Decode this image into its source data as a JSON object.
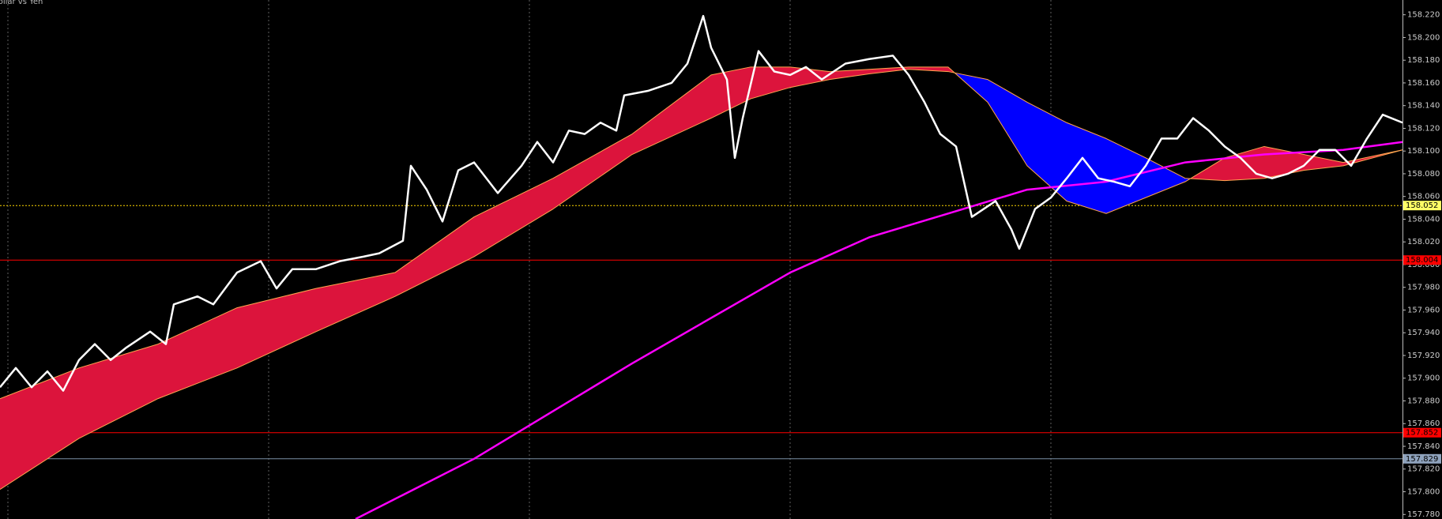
{
  "chart_data": {
    "type": "line",
    "title": "Dollar vs Yen",
    "background": "#000000",
    "grid": true,
    "grid_color": "#606060",
    "ylim": [
      157.776,
      158.233
    ],
    "xlim": [
      0,
      1775
    ],
    "xticks": [
      10,
      340,
      670,
      1000,
      1330
    ],
    "yticks": [
      {
        "value": 158.22,
        "label": "158.220"
      },
      {
        "value": 158.2,
        "label": "158.200"
      },
      {
        "value": 158.18,
        "label": "158.180"
      },
      {
        "value": 158.16,
        "label": "158.160"
      },
      {
        "value": 158.14,
        "label": "158.140"
      },
      {
        "value": 158.12,
        "label": "158.120"
      },
      {
        "value": 158.1,
        "label": "158.100"
      },
      {
        "value": 158.08,
        "label": "158.080"
      },
      {
        "value": 158.06,
        "label": "158.060"
      },
      {
        "value": 158.04,
        "label": "158.040"
      },
      {
        "value": 158.02,
        "label": "158.020"
      },
      {
        "value": 158,
        "label": "158.000"
      },
      {
        "value": 157.98,
        "label": "157.980"
      },
      {
        "value": 157.96,
        "label": "157.960"
      },
      {
        "value": 157.94,
        "label": "157.940"
      },
      {
        "value": 157.92,
        "label": "157.920"
      },
      {
        "value": 157.9,
        "label": "157.900"
      },
      {
        "value": 157.88,
        "label": "157.880"
      },
      {
        "value": 157.86,
        "label": "157.860"
      },
      {
        "value": 157.84,
        "label": "157.840"
      },
      {
        "value": 157.82,
        "label": "157.820"
      },
      {
        "value": 157.8,
        "label": "157.800"
      },
      {
        "value": 157.78,
        "label": "157.780"
      }
    ],
    "levels": [
      {
        "value": 158.052,
        "color": "#ffd700",
        "box_color": "#ffff66",
        "dotted": true
      },
      {
        "value": 158.004,
        "color": "#ff0000",
        "box_color": "#ff0000",
        "dotted": false
      },
      {
        "value": 157.852,
        "color": "#ff0000",
        "box_color": "#ff0000",
        "dotted": false
      },
      {
        "value": 157.829,
        "color": "#7a8fa6",
        "box_color": "#8fa3bd",
        "dotted": false
      }
    ],
    "cloud_colors": {
      "up": "#dc143c",
      "down": "#0000ff"
    },
    "ma_x": [
      0,
      100,
      200,
      300,
      400,
      500,
      600,
      700,
      800,
      900,
      950,
      1000,
      1050,
      1100,
      1150,
      1200,
      1250,
      1300,
      1350,
      1400,
      1450,
      1500,
      1550,
      1600,
      1650,
      1700,
      1775
    ],
    "fast_ma": {
      "color": "#ffa54f",
      "values": [
        157.882,
        157.909,
        157.93,
        157.962,
        157.979,
        157.993,
        158.042,
        158.076,
        158.115,
        158.167,
        158.174,
        158.174,
        158.17,
        158.172,
        158.174,
        158.174,
        158.143,
        158.087,
        158.056,
        158.045,
        158.059,
        158.073,
        158.094,
        158.104,
        158.097,
        158.09,
        158.101
      ]
    },
    "slow_ma": {
      "color": "#ffa54f",
      "values": [
        157.802,
        157.847,
        157.882,
        157.909,
        157.941,
        157.972,
        158.007,
        158.049,
        158.097,
        158.129,
        158.146,
        158.156,
        158.163,
        158.168,
        158.172,
        158.17,
        158.163,
        158.143,
        158.125,
        158.111,
        158.094,
        158.076,
        158.074,
        158.076,
        158.083,
        158.087,
        158.101
      ]
    },
    "long_ma": {
      "color": "#ff00ff",
      "x": [
        450,
        600,
        800,
        1000,
        1100,
        1200,
        1300,
        1400,
        1500,
        1600,
        1700,
        1775
      ],
      "values": [
        157.776,
        157.829,
        157.913,
        157.993,
        158.024,
        158.045,
        158.066,
        158.073,
        158.09,
        158.097,
        158.101,
        158.108
      ]
    },
    "price": {
      "color": "#ffffff",
      "x": [
        0,
        20,
        40,
        60,
        80,
        100,
        120,
        140,
        160,
        190,
        210,
        220,
        250,
        270,
        300,
        330,
        350,
        370,
        400,
        430,
        460,
        480,
        510,
        520,
        540,
        560,
        580,
        600,
        630,
        660,
        680,
        700,
        720,
        740,
        760,
        780,
        790,
        820,
        850,
        870,
        890,
        900,
        920,
        930,
        940,
        960,
        980,
        1000,
        1020,
        1040,
        1070,
        1100,
        1130,
        1150,
        1170,
        1190,
        1210,
        1230,
        1260,
        1280,
        1290,
        1310,
        1330,
        1350,
        1370,
        1390,
        1410,
        1430,
        1450,
        1470,
        1490,
        1510,
        1530,
        1550,
        1570,
        1590,
        1610,
        1630,
        1650,
        1670,
        1690,
        1710,
        1730,
        1750,
        1775
      ],
      "values": [
        157.892,
        157.909,
        157.892,
        157.906,
        157.889,
        157.916,
        157.93,
        157.916,
        157.927,
        157.941,
        157.93,
        157.965,
        157.972,
        157.965,
        157.993,
        158.003,
        157.979,
        157.996,
        157.996,
        158.003,
        158.007,
        158.01,
        158.021,
        158.087,
        158.066,
        158.038,
        158.083,
        158.09,
        158.063,
        158.087,
        158.108,
        158.09,
        158.118,
        158.115,
        158.125,
        158.118,
        158.149,
        158.153,
        158.16,
        158.177,
        158.219,
        158.191,
        158.163,
        158.094,
        158.129,
        158.188,
        158.17,
        158.167,
        158.174,
        158.163,
        158.177,
        158.181,
        158.184,
        158.167,
        158.143,
        158.115,
        158.104,
        158.042,
        158.056,
        158.031,
        158.014,
        158.049,
        158.059,
        158.076,
        158.094,
        158.076,
        158.073,
        158.069,
        158.087,
        158.111,
        158.111,
        158.129,
        158.118,
        158.104,
        158.094,
        158.08,
        158.076,
        158.08,
        158.087,
        158.101,
        158.101,
        158.087,
        158.111,
        158.132,
        158.125
      ]
    }
  }
}
